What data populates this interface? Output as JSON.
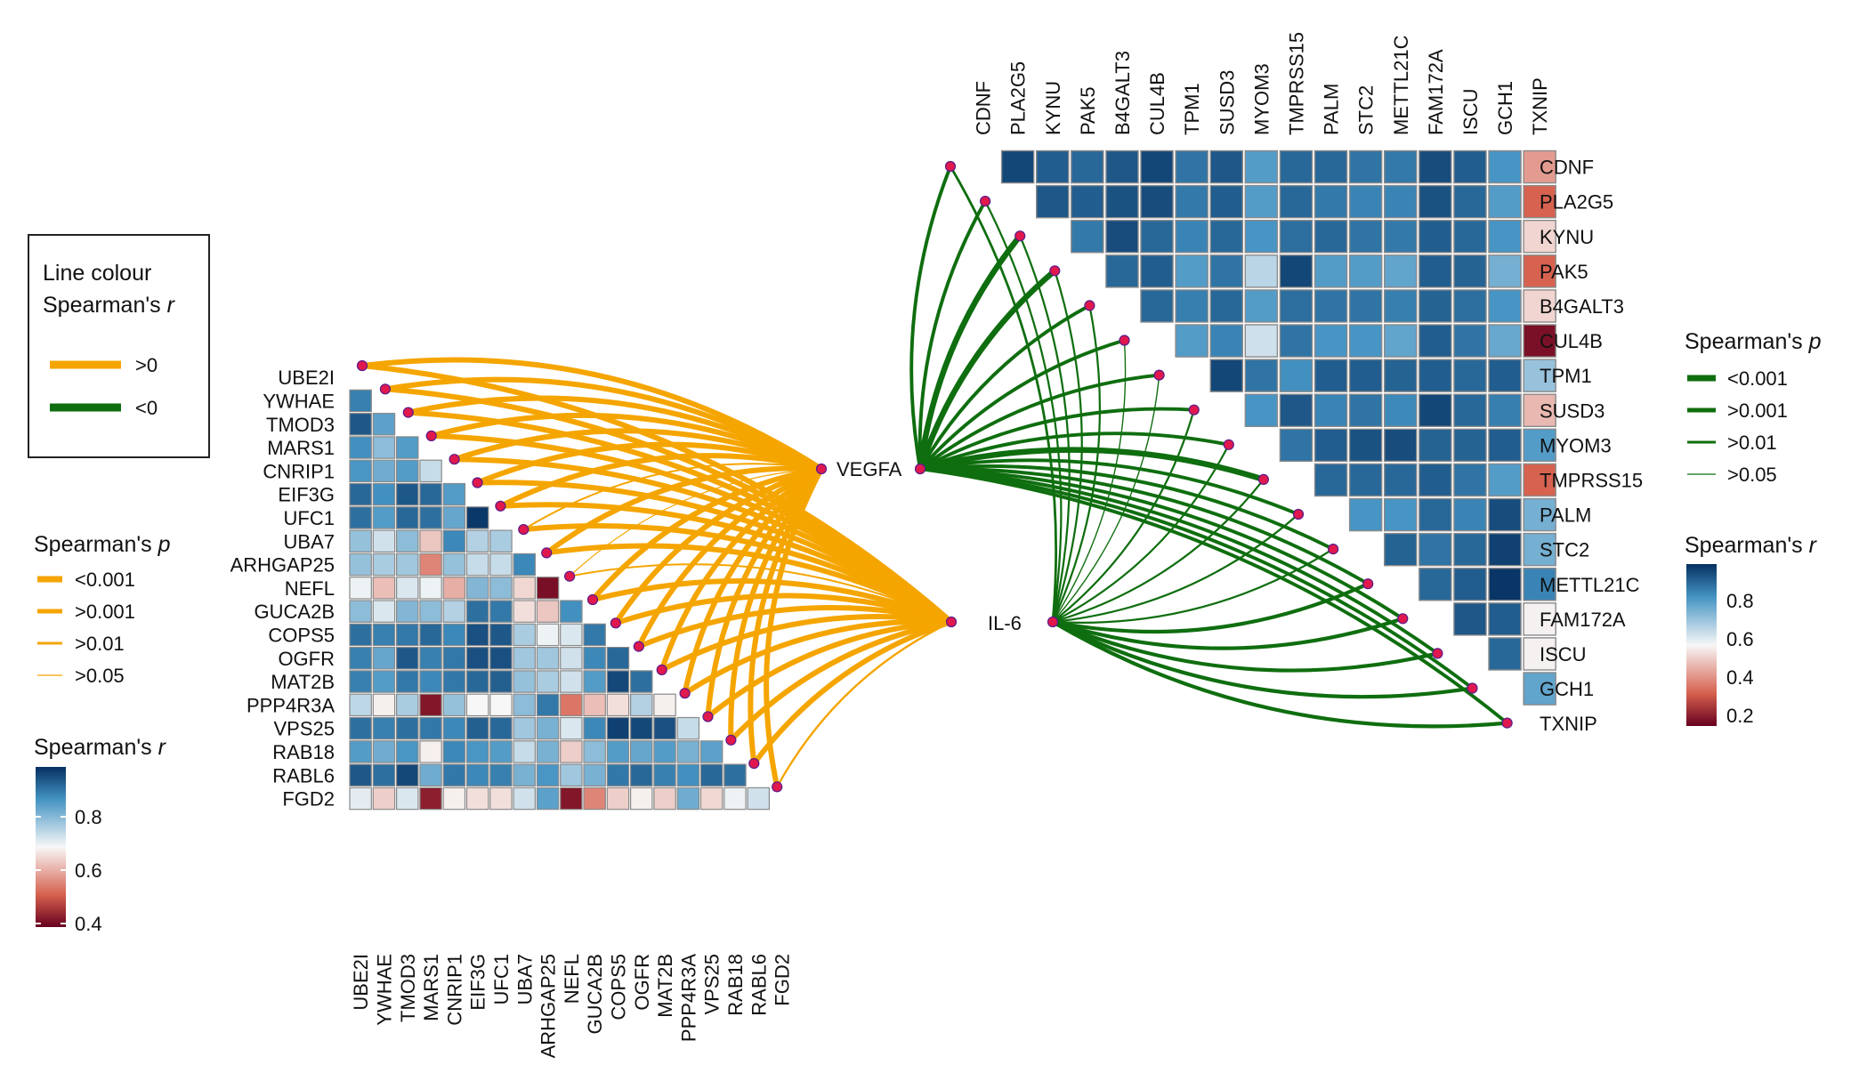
{
  "chart_data": {
    "type": "heatmap",
    "panels": [
      {
        "id": "left",
        "genes": [
          "UBE2I",
          "YWHAE",
          "TMOD3",
          "MARS1",
          "CNRIP1",
          "EIF3G",
          "UFC1",
          "UBA7",
          "ARHGAP25",
          "NEFL",
          "GUCA2B",
          "COPS5",
          "OGFR",
          "MAT2B",
          "PPP4R3A",
          "VPS25",
          "RAB18",
          "RABL6",
          "FGD2"
        ],
        "hub_labels": [
          "VEGFA",
          ""
        ],
        "link_sign": "positive",
        "link_color": "#f5a500",
        "link_widths_vegfa": [
          3,
          3,
          3,
          3,
          3,
          3,
          3,
          1,
          3,
          0.6,
          3,
          3,
          3,
          3,
          3,
          3,
          3,
          3,
          3
        ],
        "link_widths_il6": [
          3,
          3,
          3,
          3,
          3,
          3,
          3,
          3,
          3,
          1,
          3,
          3,
          3,
          3,
          3,
          3,
          3,
          3,
          1.2
        ],
        "correlation_matrix": [
          [
            0.9
          ],
          [
            0.95,
            0.85
          ],
          [
            0.88,
            0.8,
            0.86
          ],
          [
            0.87,
            0.83,
            0.86,
            0.74
          ],
          [
            0.93,
            0.88,
            0.95,
            0.93,
            0.86
          ],
          [
            0.92,
            0.86,
            0.93,
            0.92,
            0.84,
            0.99
          ],
          [
            0.79,
            0.73,
            0.8,
            0.63,
            0.89,
            0.76,
            0.77
          ],
          [
            0.79,
            0.77,
            0.78,
            0.55,
            0.79,
            0.74,
            0.74,
            0.89
          ],
          [
            0.7,
            0.62,
            0.72,
            0.7,
            0.6,
            0.81,
            0.8,
            0.65,
            0.4
          ],
          [
            0.8,
            0.72,
            0.81,
            0.8,
            0.76,
            0.92,
            0.91,
            0.66,
            0.63,
            0.88
          ],
          [
            0.92,
            0.9,
            0.91,
            0.93,
            0.89,
            0.96,
            0.95,
            0.77,
            0.7,
            0.72,
            0.91
          ],
          [
            0.9,
            0.84,
            0.95,
            0.9,
            0.91,
            0.96,
            0.96,
            0.78,
            0.78,
            0.73,
            0.89,
            0.93
          ],
          [
            0.9,
            0.86,
            0.91,
            0.89,
            0.91,
            0.93,
            0.94,
            0.79,
            0.77,
            0.73,
            0.86,
            0.97,
            0.92
          ],
          [
            0.75,
            0.68,
            0.77,
            0.41,
            0.79,
            0.69,
            0.69,
            0.8,
            0.91,
            0.53,
            0.62,
            0.66,
            0.76,
            0.68
          ],
          [
            0.92,
            0.9,
            0.92,
            0.91,
            0.89,
            0.94,
            0.93,
            0.78,
            0.82,
            0.72,
            0.89,
            0.98,
            0.97,
            0.96,
            0.74
          ],
          [
            0.86,
            0.83,
            0.87,
            0.68,
            0.89,
            0.87,
            0.86,
            0.74,
            0.82,
            0.64,
            0.8,
            0.86,
            0.84,
            0.86,
            0.82,
            0.85
          ],
          [
            0.95,
            0.92,
            0.97,
            0.83,
            0.91,
            0.89,
            0.9,
            0.82,
            0.87,
            0.78,
            0.82,
            0.91,
            0.93,
            0.9,
            0.88,
            0.93,
            0.92
          ],
          [
            0.71,
            0.64,
            0.72,
            0.42,
            0.68,
            0.66,
            0.66,
            0.73,
            0.85,
            0.41,
            0.55,
            0.64,
            0.68,
            0.64,
            0.83,
            0.65,
            0.7,
            0.73
          ]
        ],
        "colorbar": {
          "title": "Spearman's r",
          "ticks": [
            "0.8",
            "0.6",
            "0.4"
          ],
          "range": [
            0.38,
            1.0
          ]
        }
      },
      {
        "id": "right",
        "genes": [
          "CDNF",
          "PLA2G5",
          "KYNU",
          "PAK5",
          "B4GALT3",
          "CUL4B",
          "TPM1",
          "SUSD3",
          "MYOM3",
          "TMPRSS15",
          "PALM",
          "STC2",
          "METTL21C",
          "FAM172A",
          "ISCU",
          "GCH1",
          "TXNIP"
        ],
        "hub_labels": [
          "VEGFA",
          "IL-6"
        ],
        "link_sign": "negative",
        "link_color": "#0f6e0f",
        "link_widths_vegfa": [
          3,
          3,
          5,
          5,
          3,
          3,
          3,
          3,
          3,
          5,
          3,
          3,
          3,
          3,
          3,
          3,
          3
        ],
        "link_widths_il6": [
          2,
          1.6,
          1.6,
          1.6,
          1.6,
          1,
          1,
          1.6,
          1.6,
          1.6,
          1.6,
          1.6,
          3,
          3,
          3,
          3,
          3
        ],
        "correlation_matrix": [
          [
            0.96
          ],
          [
            0.92,
            0.93
          ],
          [
            0.9,
            0.92,
            0.87
          ],
          [
            0.93,
            0.94,
            0.95,
            0.9
          ],
          [
            0.96,
            0.95,
            0.9,
            0.92,
            0.9
          ],
          [
            0.88,
            0.87,
            0.85,
            0.8,
            0.86,
            0.8
          ],
          [
            0.93,
            0.92,
            0.9,
            0.88,
            0.9,
            0.85,
            0.96
          ],
          [
            0.8,
            0.8,
            0.82,
            0.65,
            0.8,
            0.62,
            0.88,
            0.82
          ],
          [
            0.9,
            0.9,
            0.89,
            0.96,
            0.89,
            0.88,
            0.83,
            0.93,
            0.88
          ],
          [
            0.9,
            0.87,
            0.9,
            0.8,
            0.88,
            0.82,
            0.92,
            0.85,
            0.92,
            0.9
          ],
          [
            0.88,
            0.85,
            0.88,
            0.8,
            0.88,
            0.82,
            0.92,
            0.88,
            0.94,
            0.9,
            0.82
          ],
          [
            0.87,
            0.85,
            0.87,
            0.78,
            0.86,
            0.78,
            0.91,
            0.84,
            0.95,
            0.9,
            0.82,
            0.91
          ],
          [
            0.95,
            0.94,
            0.92,
            0.92,
            0.91,
            0.92,
            0.92,
            0.96,
            0.91,
            0.92,
            0.9,
            0.88,
            0.9
          ],
          [
            0.92,
            0.9,
            0.9,
            0.91,
            0.89,
            0.88,
            0.9,
            0.9,
            0.91,
            0.88,
            0.85,
            0.9,
            0.92,
            0.93
          ],
          [
            0.82,
            0.8,
            0.82,
            0.75,
            0.82,
            0.77,
            0.92,
            0.86,
            0.92,
            0.8,
            0.95,
            0.97,
            0.99,
            0.92,
            0.9
          ],
          [
            0.4,
            0.3,
            0.5,
            0.3,
            0.5,
            0.15,
            0.7,
            0.45,
            0.8,
            0.3,
            0.75,
            0.75,
            0.85,
            0.55,
            0.55,
            0.78
          ]
        ],
        "colorbar": {
          "title": "Spearman's r",
          "ticks": [
            "0.8",
            "0.6",
            "0.4",
            "0.2"
          ],
          "range": [
            0.12,
            1.0
          ]
        }
      }
    ],
    "legend_line_colour": {
      "title_line1": "Line colour",
      "title_line2": "Spearman's",
      "title_italic": "r",
      "entries": [
        {
          "label": ">0",
          "color": "#f5a500"
        },
        {
          "label": "<0",
          "color": "#0f6e0f"
        }
      ]
    },
    "legend_p_left": {
      "title": "Spearman's",
      "title_italic": "p",
      "entries": [
        ">0.001",
        "<0.001",
        ">0.01",
        ">0.05"
      ]
    },
    "legend_p_right": {
      "title": "Spearman's",
      "title_italic": "p",
      "entries": [
        "<0.001",
        ">0.001",
        ">0.01",
        ">0.05"
      ]
    },
    "hubs": {
      "vegfa": "VEGFA",
      "il6": "IL-6"
    }
  }
}
